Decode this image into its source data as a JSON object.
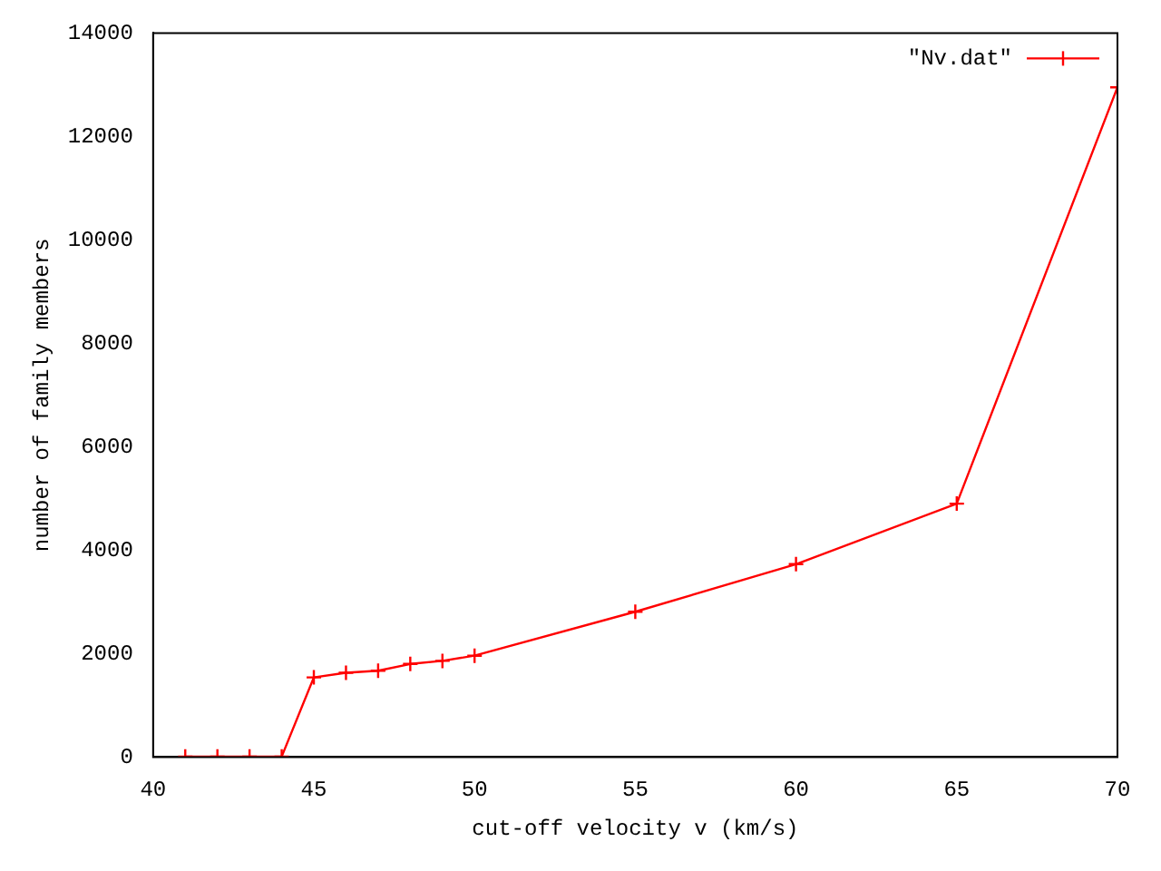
{
  "chart_data": {
    "type": "line",
    "xlabel": "cut-off velocity v (km/s)",
    "ylabel": "number of family members",
    "series": [
      {
        "name": "\"Nv.dat\"",
        "color": "#ff0000",
        "x": [
          41,
          42,
          43,
          44,
          45,
          46,
          47,
          48,
          49,
          50,
          55,
          60,
          65,
          70
        ],
        "values": [
          10,
          10,
          10,
          10,
          1540,
          1630,
          1670,
          1800,
          1860,
          1960,
          2810,
          3730,
          4900,
          12950
        ]
      }
    ],
    "xlim": [
      40,
      70
    ],
    "xticks": [
      40,
      45,
      50,
      55,
      60,
      65,
      70
    ],
    "ylim": [
      0,
      14000
    ],
    "yticks": [
      0,
      2000,
      4000,
      6000,
      8000,
      10000,
      12000,
      14000
    ],
    "grid": false,
    "legend": "top right",
    "marker": "cross",
    "line_style": "solid"
  }
}
